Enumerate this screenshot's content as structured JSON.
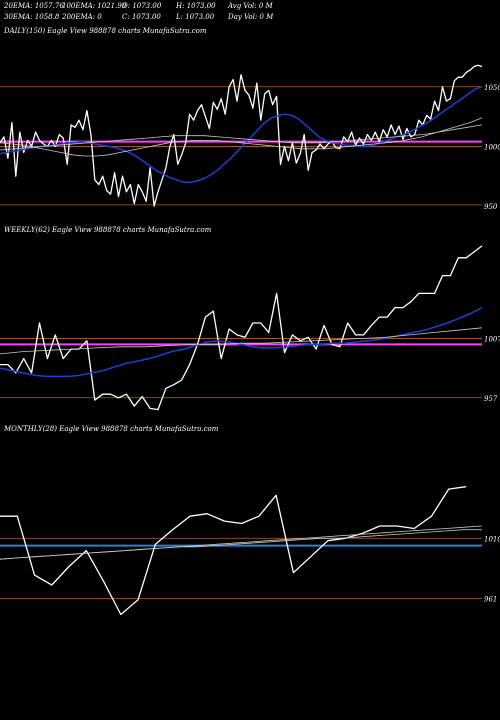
{
  "header": {
    "ema20": "20EMA: 1057.76",
    "ema100": "100EMA: 1021.99",
    "open": "O: 1073.00",
    "high": "H: 1073.00",
    "avg_vol": "Avg Vol: 0  M",
    "ema30": "30EMA: 1058.8",
    "ema200": "200EMA: 0",
    "close": "C: 1073.00",
    "low": "L: 1073.00",
    "day_vol": "Day Vol: 0  M"
  },
  "colors": {
    "price": "#ffffff",
    "ema_fast": "#1c3fd6",
    "ema_slow": "#c8c8c8",
    "support": "#ff40ff",
    "level": "#b5651d",
    "monthly_line": "#2a7fd4"
  },
  "chart_data": [
    {
      "type": "line",
      "title": "DAILY(150) Eagle  View  988878  charts MunafaSutra.com",
      "yticks": [
        "1050",
        "1000",
        "950"
      ],
      "ylim": [
        940,
        1085
      ],
      "series": [
        {
          "values": [
            1003,
            1008,
            990,
            1020,
            975,
            1012,
            995,
            1005,
            1000,
            1012,
            1005,
            1002,
            1000,
            1005,
            1000,
            1010,
            1007,
            985,
            1018,
            1016,
            1022,
            1014,
            1030,
            1010,
            972,
            968,
            975,
            963,
            960,
            978,
            958,
            975,
            962,
            968,
            952,
            968,
            962,
            954,
            982,
            950,
            962,
            972,
            982,
            1000,
            1010,
            985,
            993,
            1003,
            1027,
            1022,
            1030,
            1035,
            1025,
            1015,
            1037,
            1031,
            1040,
            1027,
            1050,
            1056,
            1038,
            1060,
            1047,
            1043,
            1032,
            1053,
            1022,
            1044,
            1047,
            1035,
            1042,
            985,
            1000,
            988,
            1003,
            986,
            994,
            1010,
            980,
            995,
            997,
            1002,
            998,
            1002,
            1004,
            999,
            998,
            1008,
            1004,
            1012,
            1001,
            1007,
            1002,
            1010,
            1005,
            1012,
            1004,
            1014,
            1008,
            1018,
            1010,
            1017,
            1006,
            1015,
            1008,
            1010,
            1022,
            1018,
            1026,
            1023,
            1038,
            1030,
            1050,
            1038,
            1040,
            1055,
            1058,
            1058,
            1062,
            1064,
            1067,
            1068,
            1067
          ]
        },
        {
          "values": [
            994,
            995,
            996,
            997,
            998,
            999,
            1000,
            1000,
            1001,
            1002,
            1003,
            1003,
            1004,
            1003,
            1002,
            1001,
            1000,
            999,
            997,
            995,
            992,
            988,
            984,
            980,
            977,
            974,
            972,
            970,
            970,
            971,
            973,
            976,
            980,
            985,
            990,
            996,
            1002,
            1008,
            1014,
            1020,
            1024,
            1026,
            1027,
            1026,
            1023,
            1018,
            1013,
            1008,
            1005,
            1003,
            1002,
            1001,
            1001,
            1000,
            1000,
            1001,
            1003,
            1005,
            1007,
            1009,
            1011,
            1014,
            1017,
            1020,
            1024,
            1028,
            1032,
            1036,
            1040,
            1044,
            1048,
            1050
          ]
        },
        {
          "values": [
            1003,
            1002,
            1001,
            999,
            997,
            995,
            993,
            992,
            992,
            993,
            995,
            997,
            999,
            1001,
            1003,
            1004,
            1005,
            1005,
            1005,
            1004,
            1003,
            1002,
            1001,
            1000,
            999,
            998,
            998,
            998,
            999,
            1000,
            1001,
            1002,
            1003,
            1004,
            1006,
            1008,
            1011,
            1014,
            1017,
            1020,
            1024
          ]
        },
        {
          "values": [
            997,
            998,
            999,
            1000,
            1001,
            1002,
            1003,
            1004,
            1005,
            1006,
            1007,
            1008,
            1009,
            1009,
            1009,
            1008,
            1007,
            1006,
            1005,
            1004,
            1003,
            1003,
            1003,
            1004,
            1005,
            1006,
            1007,
            1008,
            1009,
            1010,
            1012,
            1014,
            1016,
            1018
          ]
        }
      ]
    },
    {
      "type": "line",
      "title": "WEEKLY(62) Eagle  View  988878  charts MunafaSutra.com",
      "yticks": [
        "1007",
        "957"
      ],
      "ylim": [
        945,
        1090
      ],
      "series": [
        {
          "values": [
            985,
            985,
            978,
            990,
            978,
            1020,
            990,
            1010,
            990,
            998,
            998,
            1005,
            955,
            960,
            960,
            957,
            960,
            950,
            958,
            948,
            947,
            965,
            968,
            972,
            985,
            1002,
            1025,
            1030,
            990,
            1015,
            1010,
            1008,
            1020,
            1020,
            1012,
            1045,
            995,
            1010,
            1005,
            1008,
            998,
            1018,
            1002,
            1000,
            1020,
            1010,
            1010,
            1018,
            1025,
            1025,
            1033,
            1033,
            1038,
            1045,
            1045,
            1045,
            1060,
            1060,
            1075,
            1075,
            1080,
            1085
          ]
        },
        {
          "values": [
            982,
            980,
            978,
            976,
            975,
            975,
            975,
            976,
            978,
            980,
            983,
            986,
            988,
            990,
            993,
            996,
            998,
            1001,
            1004,
            1005,
            1004,
            1002,
            1000,
            999,
            999,
            1000,
            1001,
            1002,
            1002,
            1003,
            1003,
            1004,
            1005,
            1006,
            1008,
            1010,
            1012,
            1014,
            1017,
            1020,
            1024,
            1028,
            1033
          ]
        },
        {
          "values": [
            994,
            996,
            997,
            998,
            999,
            1000,
            1000,
            1001,
            1002,
            1002,
            1003,
            1003,
            1004,
            1005,
            1006,
            1007,
            1008,
            1010,
            1012,
            1014,
            1016
          ]
        }
      ]
    },
    {
      "type": "line",
      "title": "MONTHLY(28) Eagle  View  988878  charts MunafaSutra.com",
      "yticks": [
        "1010",
        "961"
      ],
      "ylim": [
        950,
        1090
      ],
      "series": [
        {
          "values": [
            1028,
            1028,
            980,
            972,
            987,
            1000,
            975,
            948,
            960,
            1005,
            1017,
            1028,
            1030,
            1024,
            1022,
            1028,
            1045,
            982,
            995,
            1008,
            1010,
            1014,
            1020,
            1020,
            1018,
            1028,
            1050,
            1052
          ]
        },
        {
          "values": [
            993,
            994,
            995,
            996,
            997,
            998,
            999,
            1000,
            1001,
            1002,
            1003,
            1004,
            1005,
            1006,
            1007,
            1008,
            1009,
            1010,
            1011,
            1012,
            1013,
            1014,
            1015,
            1016,
            1017,
            1018,
            1019,
            1020
          ]
        },
        {
          "values": [
            993,
            994,
            995,
            996,
            997,
            998,
            999,
            1000,
            1001,
            1002,
            1003,
            1003,
            1004,
            1005,
            1006,
            1007,
            1008,
            1009,
            1010,
            1010,
            1011,
            1012,
            1013,
            1014,
            1015,
            1016,
            1017,
            1017
          ]
        }
      ]
    }
  ]
}
